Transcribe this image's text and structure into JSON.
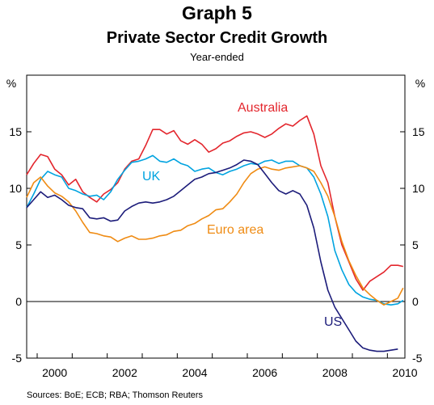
{
  "title": "Graph 5",
  "subtitle": "Private Sector Credit Growth",
  "subtitle2": "Year-ended",
  "source": "Sources: BoE; ECB; RBA; Thomson Reuters",
  "chart_data": {
    "type": "line",
    "xlim": [
      1999.7,
      2010.5
    ],
    "ylim": [
      -5,
      20
    ],
    "x_ticks": [
      2000,
      2002,
      2004,
      2006,
      2008,
      2010
    ],
    "x_tick_labels": [
      "2000",
      "2002",
      "2004",
      "2006",
      "2008",
      "2010"
    ],
    "y_ticks": [
      -5,
      0,
      5,
      10,
      15
    ],
    "y_tick_labels": [
      "-5",
      "0",
      "5",
      "10",
      "15"
    ],
    "y_unit_left": "%",
    "y_unit_right": "%",
    "grid": false,
    "zero_line": true,
    "series": [
      {
        "name": "Australia",
        "color": "#e3262d",
        "x": [
          1999.7,
          1999.9,
          2000.1,
          2000.3,
          2000.5,
          2000.7,
          2000.9,
          2001.1,
          2001.3,
          2001.5,
          2001.7,
          2001.9,
          2002.1,
          2002.3,
          2002.5,
          2002.7,
          2002.9,
          2003.1,
          2003.3,
          2003.5,
          2003.7,
          2003.9,
          2004.1,
          2004.3,
          2004.5,
          2004.7,
          2004.9,
          2005.1,
          2005.3,
          2005.5,
          2005.7,
          2005.9,
          2006.1,
          2006.3,
          2006.5,
          2006.7,
          2006.9,
          2007.1,
          2007.3,
          2007.5,
          2007.7,
          2007.9,
          2008.1,
          2008.3,
          2008.5,
          2008.7,
          2008.9,
          2009.1,
          2009.3,
          2009.5,
          2009.7,
          2009.9,
          2010.1,
          2010.3,
          2010.45
        ],
        "values": [
          11.2,
          12.2,
          13.0,
          12.8,
          11.7,
          11.2,
          10.3,
          10.8,
          9.7,
          9.2,
          8.8,
          9.5,
          9.9,
          10.5,
          11.7,
          12.4,
          12.6,
          13.8,
          15.2,
          15.2,
          14.8,
          15.1,
          14.2,
          13.9,
          14.3,
          13.9,
          13.2,
          13.5,
          14.0,
          14.2,
          14.6,
          14.9,
          15.0,
          14.8,
          14.5,
          14.8,
          15.3,
          15.7,
          15.5,
          16.0,
          16.4,
          14.8,
          12.0,
          10.5,
          7.5,
          5.0,
          3.5,
          2.0,
          1.0,
          1.8,
          2.2,
          2.6,
          3.2,
          3.2,
          3.1
        ]
      },
      {
        "name": "UK",
        "color": "#00a3e0",
        "x": [
          1999.7,
          1999.9,
          2000.1,
          2000.3,
          2000.5,
          2000.7,
          2000.9,
          2001.1,
          2001.3,
          2001.5,
          2001.7,
          2001.9,
          2002.1,
          2002.3,
          2002.5,
          2002.7,
          2002.9,
          2003.1,
          2003.3,
          2003.5,
          2003.7,
          2003.9,
          2004.1,
          2004.3,
          2004.5,
          2004.7,
          2004.9,
          2005.1,
          2005.3,
          2005.5,
          2005.7,
          2005.9,
          2006.1,
          2006.3,
          2006.5,
          2006.7,
          2006.9,
          2007.1,
          2007.3,
          2007.5,
          2007.7,
          2007.9,
          2008.1,
          2008.3,
          2008.5,
          2008.7,
          2008.9,
          2009.1,
          2009.3,
          2009.5,
          2009.7,
          2009.9,
          2010.1,
          2010.3,
          2010.45
        ],
        "values": [
          8.3,
          9.5,
          10.8,
          11.5,
          11.2,
          11.0,
          10.0,
          9.8,
          9.5,
          9.3,
          9.4,
          9.0,
          9.7,
          10.8,
          11.6,
          12.3,
          12.4,
          12.6,
          12.9,
          12.4,
          12.3,
          12.6,
          12.2,
          12.0,
          11.5,
          11.7,
          11.8,
          11.4,
          11.2,
          11.5,
          11.7,
          12.0,
          12.2,
          12.1,
          12.4,
          12.5,
          12.2,
          12.4,
          12.4,
          12.0,
          11.8,
          11.0,
          9.5,
          7.5,
          4.5,
          2.8,
          1.5,
          0.8,
          0.4,
          0.2,
          0.1,
          -0.2,
          -0.3,
          -0.2,
          0.1
        ]
      },
      {
        "name": "Euro area",
        "color": "#ef8b13",
        "x": [
          1999.7,
          1999.9,
          2000.1,
          2000.3,
          2000.5,
          2000.7,
          2000.9,
          2001.1,
          2001.3,
          2001.5,
          2001.7,
          2001.9,
          2002.1,
          2002.3,
          2002.5,
          2002.7,
          2002.9,
          2003.1,
          2003.3,
          2003.5,
          2003.7,
          2003.9,
          2004.1,
          2004.3,
          2004.5,
          2004.7,
          2004.9,
          2005.1,
          2005.3,
          2005.5,
          2005.7,
          2005.9,
          2006.1,
          2006.3,
          2006.5,
          2006.7,
          2006.9,
          2007.1,
          2007.3,
          2007.5,
          2007.7,
          2007.9,
          2008.1,
          2008.3,
          2008.5,
          2008.7,
          2008.9,
          2009.1,
          2009.3,
          2009.5,
          2009.7,
          2009.9,
          2010.1,
          2010.3,
          2010.45
        ],
        "values": [
          9.2,
          10.5,
          11.0,
          10.2,
          9.6,
          9.3,
          8.8,
          8.0,
          7.0,
          6.1,
          6.0,
          5.8,
          5.7,
          5.3,
          5.6,
          5.8,
          5.5,
          5.5,
          5.6,
          5.8,
          5.9,
          6.2,
          6.3,
          6.7,
          6.9,
          7.3,
          7.6,
          8.1,
          8.2,
          8.8,
          9.5,
          10.5,
          11.3,
          11.7,
          11.9,
          11.7,
          11.6,
          11.8,
          11.9,
          12.0,
          11.8,
          11.5,
          10.5,
          9.3,
          7.5,
          5.3,
          3.6,
          2.3,
          1.2,
          0.6,
          0.1,
          -0.3,
          0.0,
          0.3,
          1.2
        ]
      },
      {
        "name": "US",
        "color": "#1c1c7a",
        "x": [
          1999.7,
          1999.9,
          2000.1,
          2000.3,
          2000.5,
          2000.7,
          2000.9,
          2001.1,
          2001.3,
          2001.5,
          2001.7,
          2001.9,
          2002.1,
          2002.3,
          2002.5,
          2002.7,
          2002.9,
          2003.1,
          2003.3,
          2003.5,
          2003.7,
          2003.9,
          2004.1,
          2004.3,
          2004.5,
          2004.7,
          2004.9,
          2005.1,
          2005.3,
          2005.5,
          2005.7,
          2005.9,
          2006.1,
          2006.3,
          2006.5,
          2006.7,
          2006.9,
          2007.1,
          2007.3,
          2007.5,
          2007.7,
          2007.9,
          2008.1,
          2008.3,
          2008.5,
          2008.7,
          2008.9,
          2009.1,
          2009.3,
          2009.5,
          2009.7,
          2009.9,
          2010.1,
          2010.3
        ],
        "values": [
          8.3,
          9.0,
          9.7,
          9.2,
          9.4,
          9.0,
          8.5,
          8.3,
          8.2,
          7.4,
          7.3,
          7.4,
          7.1,
          7.2,
          8.0,
          8.4,
          8.7,
          8.8,
          8.7,
          8.8,
          9.0,
          9.3,
          9.8,
          10.3,
          10.8,
          11.0,
          11.3,
          11.4,
          11.6,
          11.8,
          12.1,
          12.5,
          12.4,
          12.1,
          11.3,
          10.5,
          9.8,
          9.5,
          9.8,
          9.5,
          8.5,
          6.5,
          3.5,
          1.0,
          -0.5,
          -1.5,
          -2.5,
          -3.5,
          -4.1,
          -4.3,
          -4.4,
          -4.4,
          -4.3,
          -4.2
        ]
      }
    ]
  },
  "labels": {
    "australia": "Australia",
    "uk": "UK",
    "euro": "Euro area",
    "us": "US"
  }
}
